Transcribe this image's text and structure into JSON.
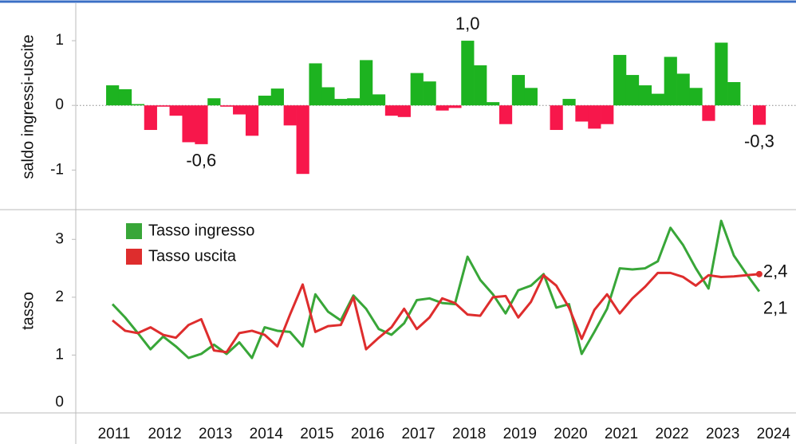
{
  "chart_data": [
    {
      "type": "bar",
      "y_label": "saldo ingressi-uscite",
      "values": [
        0.31,
        0.25,
        0.02,
        -0.38,
        -0.02,
        -0.16,
        -0.57,
        -0.6,
        0.11,
        -0.02,
        -0.14,
        -0.47,
        0.15,
        0.26,
        -0.31,
        -1.06,
        0.65,
        0.28,
        0.1,
        0.11,
        0.7,
        0.17,
        -0.16,
        -0.18,
        0.5,
        0.37,
        -0.08,
        -0.04,
        1.0,
        0.62,
        0.05,
        -0.29,
        0.47,
        0.27,
        0.0,
        -0.38,
        0.1,
        -0.25,
        -0.36,
        -0.29,
        0.78,
        0.47,
        0.31,
        0.18,
        0.75,
        0.49,
        0.27,
        -0.24,
        0.97,
        0.36,
        0.0,
        -0.3
      ],
      "value_labels": [
        null,
        null,
        null,
        null,
        null,
        null,
        null,
        "-0,6",
        null,
        null,
        null,
        null,
        null,
        null,
        null,
        null,
        null,
        null,
        null,
        null,
        null,
        null,
        null,
        null,
        null,
        null,
        null,
        null,
        "1,0",
        null,
        null,
        null,
        null,
        null,
        null,
        null,
        null,
        null,
        null,
        null,
        null,
        null,
        null,
        null,
        null,
        null,
        null,
        null,
        null,
        null,
        null,
        "-0,3"
      ],
      "positive_color": "#1db320",
      "negative_color": "#f7174b",
      "ylim": [
        -1.6,
        1.5
      ],
      "yticks": [
        -1,
        0,
        1
      ]
    },
    {
      "type": "line",
      "y_label": "tasso",
      "categories": [
        "2011",
        null,
        null,
        null,
        "2012",
        null,
        null,
        null,
        "2013",
        null,
        null,
        null,
        "2014",
        null,
        null,
        null,
        "2015",
        null,
        null,
        null,
        "2016",
        null,
        null,
        null,
        "2017",
        null,
        null,
        null,
        "2018",
        null,
        null,
        null,
        "2019",
        null,
        null,
        null,
        "2020",
        null,
        null,
        null,
        "2021",
        null,
        null,
        null,
        "2022",
        null,
        null,
        null,
        "2023",
        null,
        null,
        null
      ],
      "extra_x_label": "2024",
      "series": [
        {
          "name": "Tasso ingresso",
          "color": "#38a638",
          "values": [
            1.88,
            1.65,
            1.38,
            1.1,
            1.32,
            1.15,
            0.95,
            1.02,
            1.18,
            1.02,
            1.22,
            0.95,
            1.48,
            1.42,
            1.4,
            1.15,
            2.05,
            1.75,
            1.6,
            2.03,
            1.8,
            1.45,
            1.35,
            1.55,
            1.95,
            1.98,
            1.9,
            1.88,
            2.7,
            2.3,
            2.05,
            1.72,
            2.12,
            2.2,
            2.4,
            1.82,
            1.88,
            1.02,
            1.4,
            1.8,
            2.5,
            2.48,
            2.5,
            2.62,
            3.2,
            2.9,
            2.5,
            2.15,
            3.32,
            2.72,
            2.4,
            2.1
          ],
          "value_labels": [
            null,
            null,
            null,
            null,
            null,
            null,
            null,
            null,
            null,
            null,
            null,
            null,
            null,
            null,
            null,
            null,
            null,
            null,
            null,
            null,
            null,
            null,
            null,
            null,
            null,
            null,
            null,
            null,
            null,
            null,
            null,
            null,
            null,
            null,
            null,
            null,
            null,
            null,
            null,
            null,
            null,
            null,
            null,
            null,
            null,
            null,
            null,
            null,
            null,
            null,
            null,
            "2,1"
          ]
        },
        {
          "name": "Tasso uscita",
          "color": "#de2d2d",
          "values": [
            1.6,
            1.42,
            1.38,
            1.48,
            1.35,
            1.3,
            1.52,
            1.62,
            1.08,
            1.05,
            1.38,
            1.42,
            1.35,
            1.15,
            1.7,
            2.22,
            1.4,
            1.5,
            1.52,
            2.0,
            1.1,
            1.3,
            1.48,
            1.8,
            1.45,
            1.65,
            1.98,
            1.9,
            1.7,
            1.68,
            2.0,
            2.02,
            1.65,
            1.92,
            2.38,
            2.2,
            1.82,
            1.28,
            1.78,
            2.05,
            1.72,
            1.98,
            2.18,
            2.42,
            2.42,
            2.35,
            2.2,
            2.38,
            2.35,
            2.36,
            2.38,
            2.4
          ],
          "value_labels": [
            null,
            null,
            null,
            null,
            null,
            null,
            null,
            null,
            null,
            null,
            null,
            null,
            null,
            null,
            null,
            null,
            null,
            null,
            null,
            null,
            null,
            null,
            null,
            null,
            null,
            null,
            null,
            null,
            null,
            null,
            null,
            null,
            null,
            null,
            null,
            null,
            null,
            null,
            null,
            null,
            null,
            null,
            null,
            null,
            null,
            null,
            null,
            null,
            null,
            null,
            null,
            "2,4"
          ]
        }
      ],
      "legend": "top-left",
      "ylim": [
        0,
        3.5
      ],
      "yticks": [
        0,
        1,
        2,
        3
      ]
    }
  ]
}
